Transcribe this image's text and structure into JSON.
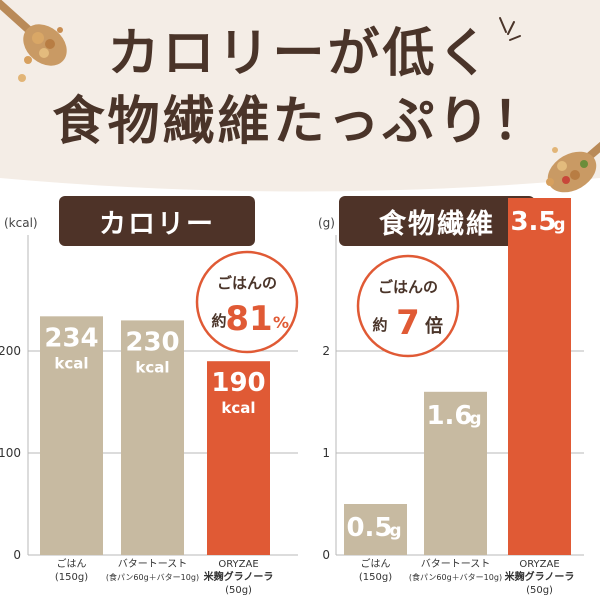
{
  "headline": {
    "line1": "カロリーが低く",
    "line2": "食物繊維たっぷり！"
  },
  "colors": {
    "beige_bar": "#c7baa1",
    "highlight_bar": "#e05a35",
    "label_bg": "#4e3328",
    "headline_text": "#4a3429"
  },
  "chart_data": [
    {
      "type": "bar",
      "title": "カロリー",
      "unit": "(kcal)",
      "ylim": [
        0,
        260
      ],
      "yticks": [
        "0",
        "100",
        "200"
      ],
      "categories": [
        {
          "name": "ごはん",
          "detail": "(150g)",
          "highlight": false
        },
        {
          "name": "バタートースト",
          "detail": "(食パン60g＋バター10g)",
          "highlight": false
        },
        {
          "name": "ORYZAE",
          "name2": "米麹グラノーラ",
          "detail": "(50g)",
          "highlight": true
        }
      ],
      "values": [
        234,
        230,
        190
      ],
      "value_labels": [
        {
          "num": "234",
          "unit": "kcal"
        },
        {
          "num": "230",
          "unit": "kcal"
        },
        {
          "num": "190",
          "unit": "kcal"
        }
      ],
      "callout": {
        "line1": "ごはんの",
        "prefix": "約",
        "value": "81",
        "suffix": "%"
      }
    },
    {
      "type": "bar",
      "title": "食物繊維",
      "unit": "(g)",
      "ylim": [
        0,
        3.0
      ],
      "yticks": [
        "0",
        "1",
        "2"
      ],
      "categories": [
        {
          "name": "ごはん",
          "detail": "(150g)",
          "highlight": false
        },
        {
          "name": "バタートースト",
          "detail": "(食パン60g＋バター10g)",
          "highlight": false
        },
        {
          "name": "ORYZAE",
          "name2": "米麹グラノーラ",
          "detail": "(50g)",
          "highlight": true
        }
      ],
      "values": [
        0.5,
        1.6,
        3.5
      ],
      "value_labels": [
        {
          "num": "0.5",
          "unit": "g"
        },
        {
          "num": "1.6",
          "unit": "g"
        },
        {
          "num": "3.5",
          "unit": "g"
        }
      ],
      "callout": {
        "line1": "ごはんの",
        "prefix": "約",
        "value": "7",
        "suffix": "倍"
      }
    }
  ]
}
